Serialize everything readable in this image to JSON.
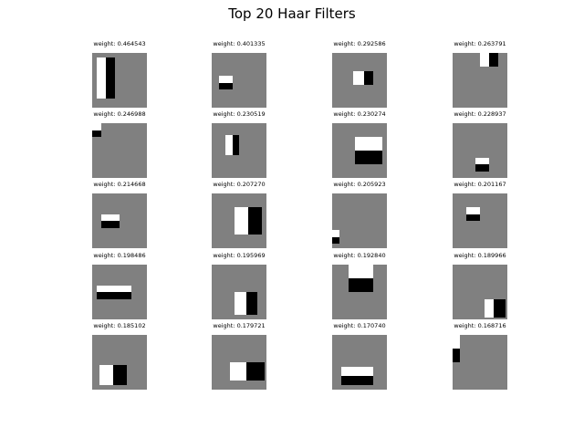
{
  "colors": {
    "background": "#808080",
    "white_region": "#ffffff",
    "black_region": "#000000"
  },
  "chart_data": {
    "type": "heatmap",
    "title": "Top 20 Haar Filters",
    "grid": {
      "rows": 5,
      "cols": 4
    },
    "filter_size": 24,
    "filters": [
      {
        "label": "weight: 0.464543",
        "weight": 0.464543,
        "regions": [
          {
            "x": 2,
            "y": 2,
            "w": 4,
            "h": 18,
            "v": 1
          },
          {
            "x": 6,
            "y": 2,
            "w": 4,
            "h": 18,
            "v": -1
          }
        ]
      },
      {
        "label": "weight: 0.401335",
        "weight": 0.401335,
        "regions": [
          {
            "x": 3,
            "y": 10,
            "w": 6,
            "h": 3,
            "v": 1
          },
          {
            "x": 3,
            "y": 13,
            "w": 6,
            "h": 3,
            "v": -1
          }
        ]
      },
      {
        "label": "weight: 0.292586",
        "weight": 0.292586,
        "regions": [
          {
            "x": 9,
            "y": 8,
            "w": 5,
            "h": 6,
            "v": 1
          },
          {
            "x": 14,
            "y": 8,
            "w": 4,
            "h": 6,
            "v": -1
          }
        ]
      },
      {
        "label": "weight: 0.263791",
        "weight": 0.263791,
        "regions": [
          {
            "x": 12,
            "y": 0,
            "w": 4,
            "h": 6,
            "v": 1
          },
          {
            "x": 16,
            "y": 0,
            "w": 4,
            "h": 6,
            "v": -1
          }
        ]
      },
      {
        "label": "weight: 0.246988",
        "weight": 0.246988,
        "regions": [
          {
            "x": 0,
            "y": 0,
            "w": 4,
            "h": 3,
            "v": 1
          },
          {
            "x": 0,
            "y": 3,
            "w": 4,
            "h": 3,
            "v": -1
          }
        ]
      },
      {
        "label": "weight: 0.230519",
        "weight": 0.230519,
        "regions": [
          {
            "x": 6,
            "y": 5,
            "w": 3,
            "h": 9,
            "v": 1
          },
          {
            "x": 9,
            "y": 5,
            "w": 3,
            "h": 9,
            "v": -1
          }
        ]
      },
      {
        "label": "weight: 0.230274",
        "weight": 0.230274,
        "regions": [
          {
            "x": 10,
            "y": 6,
            "w": 12,
            "h": 6,
            "v": 1
          },
          {
            "x": 10,
            "y": 12,
            "w": 12,
            "h": 6,
            "v": -1
          }
        ]
      },
      {
        "label": "weight: 0.228937",
        "weight": 0.228937,
        "regions": [
          {
            "x": 10,
            "y": 15,
            "w": 6,
            "h": 3,
            "v": 1
          },
          {
            "x": 10,
            "y": 18,
            "w": 6,
            "h": 3,
            "v": -1
          }
        ]
      },
      {
        "label": "weight: 0.214668",
        "weight": 0.214668,
        "regions": [
          {
            "x": 4,
            "y": 9,
            "w": 8,
            "h": 3,
            "v": 1
          },
          {
            "x": 4,
            "y": 12,
            "w": 8,
            "h": 3,
            "v": -1
          }
        ]
      },
      {
        "label": "weight: 0.207270",
        "weight": 0.20727,
        "regions": [
          {
            "x": 10,
            "y": 6,
            "w": 6,
            "h": 12,
            "v": 1
          },
          {
            "x": 16,
            "y": 6,
            "w": 6,
            "h": 12,
            "v": -1
          }
        ]
      },
      {
        "label": "weight: 0.205923",
        "weight": 0.205923,
        "regions": [
          {
            "x": 0,
            "y": 16,
            "w": 3,
            "h": 3,
            "v": 1
          },
          {
            "x": 0,
            "y": 19,
            "w": 3,
            "h": 3,
            "v": -1
          }
        ]
      },
      {
        "label": "weight: 0.201167",
        "weight": 0.201167,
        "regions": [
          {
            "x": 6,
            "y": 6,
            "w": 6,
            "h": 3,
            "v": 1
          },
          {
            "x": 6,
            "y": 9,
            "w": 6,
            "h": 3,
            "v": -1
          }
        ]
      },
      {
        "label": "weight: 0.198486",
        "weight": 0.198486,
        "regions": [
          {
            "x": 2,
            "y": 9,
            "w": 15,
            "h": 3,
            "v": 1
          },
          {
            "x": 2,
            "y": 12,
            "w": 15,
            "h": 3,
            "v": -1
          }
        ]
      },
      {
        "label": "weight: 0.195969",
        "weight": 0.195969,
        "regions": [
          {
            "x": 10,
            "y": 12,
            "w": 5,
            "h": 10,
            "v": 1
          },
          {
            "x": 15,
            "y": 12,
            "w": 5,
            "h": 10,
            "v": -1
          }
        ]
      },
      {
        "label": "weight: 0.192840",
        "weight": 0.19284,
        "regions": [
          {
            "x": 7,
            "y": 0,
            "w": 11,
            "h": 6,
            "v": 1
          },
          {
            "x": 7,
            "y": 6,
            "w": 11,
            "h": 6,
            "v": -1
          }
        ]
      },
      {
        "label": "weight: 0.189966",
        "weight": 0.189966,
        "regions": [
          {
            "x": 14,
            "y": 15,
            "w": 4,
            "h": 8,
            "v": 1
          },
          {
            "x": 18,
            "y": 15,
            "w": 5,
            "h": 8,
            "v": -1
          }
        ]
      },
      {
        "label": "weight: 0.185102",
        "weight": 0.185102,
        "regions": [
          {
            "x": 3,
            "y": 13,
            "w": 6,
            "h": 9,
            "v": 1
          },
          {
            "x": 9,
            "y": 13,
            "w": 6,
            "h": 9,
            "v": -1
          }
        ]
      },
      {
        "label": "weight: 0.179721",
        "weight": 0.179721,
        "regions": [
          {
            "x": 8,
            "y": 12,
            "w": 7,
            "h": 8,
            "v": 1
          },
          {
            "x": 15,
            "y": 12,
            "w": 8,
            "h": 8,
            "v": -1
          }
        ]
      },
      {
        "label": "weight: 0.170740",
        "weight": 0.17074,
        "regions": [
          {
            "x": 4,
            "y": 14,
            "w": 14,
            "h": 4,
            "v": 1
          },
          {
            "x": 4,
            "y": 18,
            "w": 14,
            "h": 4,
            "v": -1
          }
        ]
      },
      {
        "label": "weight: 0.168716",
        "weight": 0.168716,
        "regions": [
          {
            "x": 0,
            "y": 0,
            "w": 3,
            "h": 6,
            "v": 1
          },
          {
            "x": 0,
            "y": 6,
            "w": 3,
            "h": 6,
            "v": -1
          }
        ]
      }
    ]
  }
}
